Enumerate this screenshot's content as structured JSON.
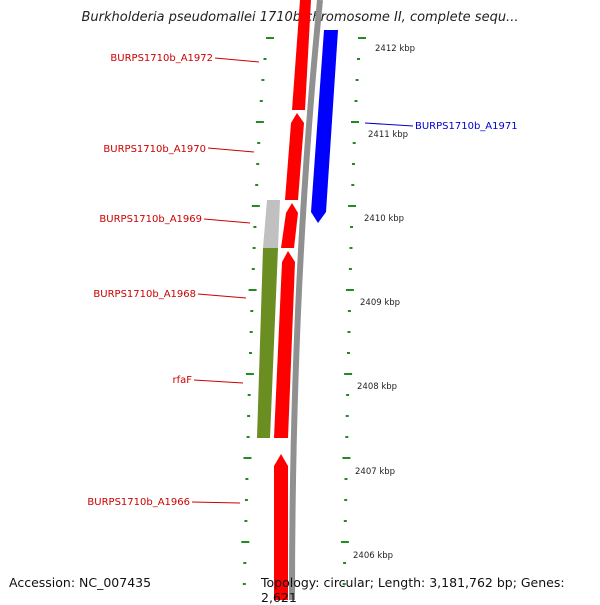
{
  "title": "Burkholderia pseudomallei 1710b chromosome II, complete sequ...",
  "accession": "Accession: NC_007435",
  "summary": "Topology: circular; Length: 3,181,762 bp; Genes: 2,621",
  "colors": {
    "cds": "#ff0000",
    "cds_reverse": "#0000ff",
    "feature_olive": "#6b8e23",
    "feature_grey": "#c0c0c0",
    "backbone": "#909090",
    "tick": "#228b22",
    "label_red": "#cc0000",
    "label_blue": "#0000cc"
  },
  "scale_labels": [
    "2412 kbp",
    "2411 kbp",
    "2410 kbp",
    "2409 kbp",
    "2408 kbp",
    "2407 kbp",
    "2406 kbp"
  ],
  "gene_labels": [
    {
      "text": "BURPS1710b_A1972",
      "color": "red"
    },
    {
      "text": "BURPS1710b_A1970",
      "color": "red"
    },
    {
      "text": "BURPS1710b_A1969",
      "color": "red"
    },
    {
      "text": "BURPS1710b_A1968",
      "color": "red"
    },
    {
      "text": "rfaF",
      "color": "red"
    },
    {
      "text": "BURPS1710b_A1966",
      "color": "red"
    },
    {
      "text": "BURPS1710b_A1971",
      "color": "blue"
    }
  ]
}
